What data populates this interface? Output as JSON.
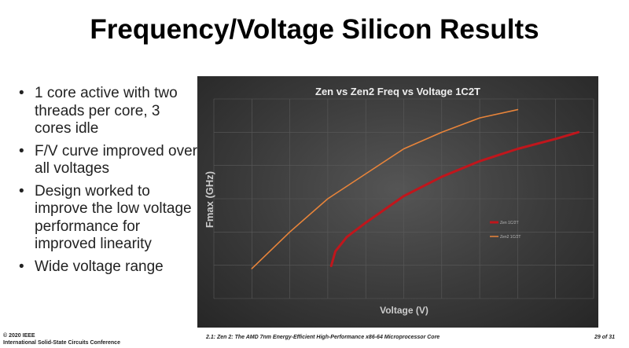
{
  "slide": {
    "title": "Frequency/Voltage Silicon Results",
    "bullets": [
      "1 core active with two threads per core, 3 cores idle",
      "F/V curve improved over all voltages",
      "Design worked to improve the low voltage performance for improved linearity",
      "Wide voltage range"
    ],
    "footer": {
      "copyright": "© 2020 IEEE",
      "conference": "International Solid-State Circuits Conference",
      "paper": "2.1: Zen 2: The AMD 7nm Energy-Efficient High-Performance x86-64 Microprocessor Core",
      "page": "29 of 31"
    }
  },
  "chart_data": {
    "type": "line",
    "title": "Zen vs Zen2 Freq vs Voltage 1C2T",
    "xlabel": "Voltage (V)",
    "ylabel": "Fmax (GHz)",
    "xlim": [
      0,
      10
    ],
    "ylim": [
      0,
      6
    ],
    "grid": true,
    "legend_placement": "center-right",
    "note": "axes unlabeled; values in gridline units",
    "series": [
      {
        "name": "Zen 1C/2T",
        "color": "#c0161c",
        "x": [
          3.09,
          3.2,
          3.5,
          4,
          5,
          6,
          7,
          8,
          9,
          9.6
        ],
        "y": [
          0.98,
          1.42,
          1.85,
          2.28,
          3.08,
          3.66,
          4.13,
          4.5,
          4.8,
          5.0
        ]
      },
      {
        "name": "Zen2 1C/2T",
        "color": "#e8843a",
        "x": [
          1,
          2,
          3,
          4,
          5,
          6,
          7,
          8
        ],
        "y": [
          0.9,
          2.0,
          3.0,
          3.75,
          4.5,
          5.0,
          5.43,
          5.68
        ]
      }
    ]
  }
}
